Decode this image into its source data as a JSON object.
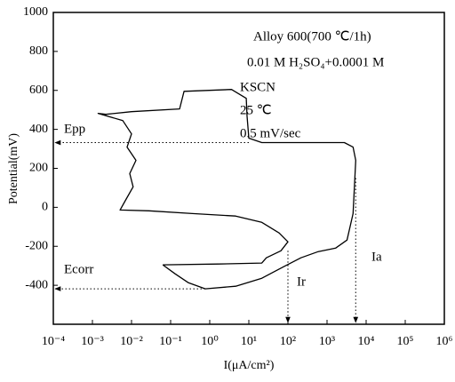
{
  "chart_data": {
    "type": "line",
    "x_label": "I(μA/cm²)",
    "y_label": "Potential(mV)",
    "xscale": "log",
    "xlim": [
      0.0001,
      1000000
    ],
    "ylim": [
      -600,
      1000
    ],
    "xticks": [
      {
        "value": 0.0001,
        "label": "10⁻⁴"
      },
      {
        "value": 0.001,
        "label": "10⁻³"
      },
      {
        "value": 0.01,
        "label": "10⁻²"
      },
      {
        "value": 0.1,
        "label": "10⁻¹"
      },
      {
        "value": 1,
        "label": "10⁰"
      },
      {
        "value": 10,
        "label": "10¹"
      },
      {
        "value": 100,
        "label": "10²"
      },
      {
        "value": 1000,
        "label": "10³"
      },
      {
        "value": 10000,
        "label": "10⁴"
      },
      {
        "value": 100000,
        "label": "10⁵"
      },
      {
        "value": 1000000,
        "label": "10⁶"
      }
    ],
    "yticks": [
      -400,
      -200,
      0,
      200,
      400,
      600,
      800,
      1000
    ],
    "annotations": [
      "Alloy 600(700 ℃/1h)",
      "0.01 M H₂SO₄+0.0001 M",
      "KSCN",
      "25 ℃",
      "0.5 mV/sec",
      "Epp",
      "Ecorr",
      "Ir",
      "Ia"
    ],
    "series": [
      {
        "color": "#000000",
        "x": [
          0.063,
          0.13,
          0.28,
          0.77,
          4.6,
          21.5,
          77,
          215,
          600,
          1670,
          3240,
          4640,
          5140,
          5410,
          4640,
          2780,
          278,
          21.5,
          10,
          9.0,
          8.6,
          3.6,
          0.22,
          0.17,
          0.01,
          0.0022,
          0.0014,
          0.006,
          0.01,
          0.0077,
          0.013,
          0.009,
          0.011,
          0.007,
          0.0051,
          0.028,
          0.36,
          4.6,
          21.5,
          60,
          100,
          66,
          28,
          21.5,
          1.67,
          0.063
        ],
        "values": [
          -295,
          -341,
          -386,
          -418,
          -405,
          -364,
          -305,
          -259,
          -227,
          -209,
          -168,
          -32,
          150,
          241,
          309,
          332,
          332,
          332,
          355,
          468,
          559,
          605,
          595,
          505,
          491,
          477,
          482,
          445,
          377,
          309,
          241,
          173,
          105,
          36,
          -14,
          -18,
          -32,
          -45,
          -77,
          -132,
          -177,
          -223,
          -259,
          -286,
          -291,
          -295
        ]
      }
    ]
  }
}
